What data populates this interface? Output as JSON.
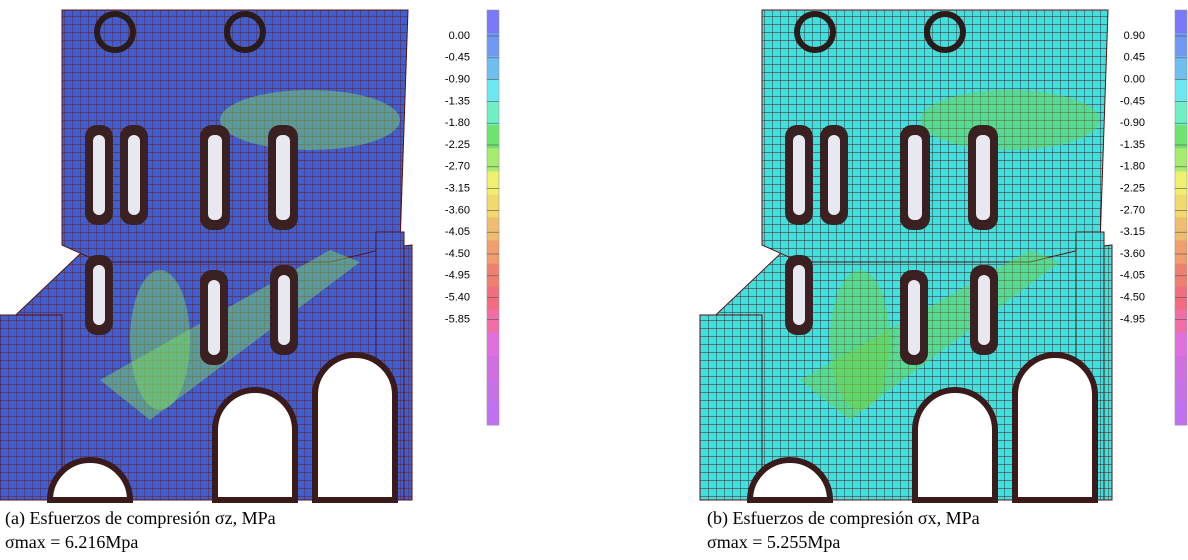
{
  "panels": [
    {
      "legend": [
        "0.00",
        "-0.45",
        "-0.90",
        "-1.35",
        "-1.80",
        "-2.25",
        "-2.70",
        "-3.15",
        "-3.60",
        "-4.05",
        "-4.50",
        "-4.95",
        "-5.40",
        "-5.85"
      ],
      "caption": "(a) Esfuerzos de compresión σz, MPa",
      "max": "σmax = 6.216Mpa"
    },
    {
      "legend": [
        "0.90",
        "0.45",
        "0.00",
        "-0.45",
        "-0.90",
        "-1.35",
        "-1.80",
        "-2.25",
        "-2.70",
        "-3.15",
        "-3.60",
        "-4.05",
        "-4.50",
        "-4.95"
      ],
      "caption": "(b) Esfuerzos de compresión σx, MPa",
      "max": "σmax = 5.255Mpa"
    }
  ]
}
